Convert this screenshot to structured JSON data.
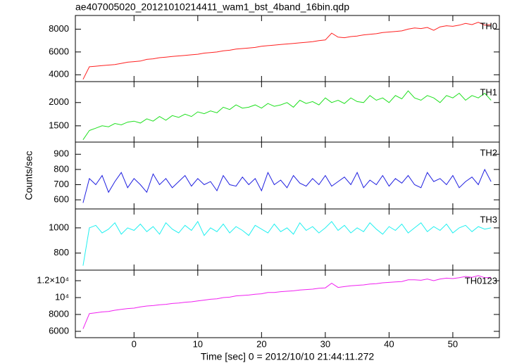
{
  "chart_data": [
    {
      "type": "line",
      "title": "ae407005020_20121010214411_wam1_bst_4band_16bin.qdp",
      "x": [
        -8,
        -7,
        -6,
        -5,
        -4,
        -3,
        -2,
        -1,
        0,
        1,
        2,
        3,
        4,
        5,
        6,
        7,
        8,
        9,
        10,
        11,
        12,
        13,
        14,
        15,
        16,
        17,
        18,
        19,
        20,
        21,
        22,
        23,
        24,
        25,
        26,
        27,
        28,
        29,
        30,
        31,
        32,
        33,
        34,
        35,
        36,
        37,
        38,
        39,
        40,
        41,
        42,
        43,
        44,
        45,
        46,
        47,
        48,
        49,
        50,
        51,
        52,
        53,
        54,
        55,
        56
      ],
      "xlim": [
        -9.2,
        57.3
      ],
      "xticks": [
        0,
        10,
        20,
        30,
        40,
        50
      ],
      "series": [
        {
          "name": "TH0",
          "color": "#ff2020",
          "values": [
            3600,
            4700,
            4750,
            4800,
            4850,
            4900,
            5000,
            5100,
            5150,
            5200,
            5350,
            5400,
            5500,
            5550,
            5600,
            5650,
            5700,
            5750,
            5800,
            5900,
            5950,
            6000,
            6100,
            6150,
            6250,
            6300,
            6350,
            6400,
            6500,
            6550,
            6600,
            6650,
            6700,
            6750,
            6800,
            6850,
            6900,
            7000,
            7050,
            7650,
            7300,
            7250,
            7350,
            7400,
            7500,
            7550,
            7600,
            7700,
            7750,
            7800,
            7850,
            8000,
            8100,
            8050,
            8150,
            7900,
            8200,
            8300,
            8250,
            8350,
            8500,
            8400,
            8600,
            8350,
            8400
          ]
        }
      ],
      "ylim": [
        3400,
        9200
      ],
      "yticks": [
        4000,
        6000,
        8000
      ]
    },
    {
      "type": "line",
      "x": [
        -8,
        -7,
        -6,
        -5,
        -4,
        -3,
        -2,
        -1,
        0,
        1,
        2,
        3,
        4,
        5,
        6,
        7,
        8,
        9,
        10,
        11,
        12,
        13,
        14,
        15,
        16,
        17,
        18,
        19,
        20,
        21,
        22,
        23,
        24,
        25,
        26,
        27,
        28,
        29,
        30,
        31,
        32,
        33,
        34,
        35,
        36,
        37,
        38,
        39,
        40,
        41,
        42,
        43,
        44,
        45,
        46,
        47,
        48,
        49,
        50,
        51,
        52,
        53,
        54,
        55,
        56
      ],
      "xlim": [
        -9.2,
        57.3
      ],
      "xticks": [
        0,
        10,
        20,
        30,
        40,
        50
      ],
      "series": [
        {
          "name": "TH1",
          "color": "#20e020",
          "values": [
            1200,
            1400,
            1450,
            1500,
            1480,
            1550,
            1520,
            1580,
            1600,
            1560,
            1650,
            1600,
            1700,
            1620,
            1720,
            1680,
            1750,
            1700,
            1800,
            1760,
            1820,
            1780,
            1900,
            1850,
            1950,
            1880,
            1900,
            1950,
            1880,
            1980,
            1920,
            1950,
            2000,
            1900,
            2050,
            1980,
            2020,
            1950,
            2100,
            2000,
            2050,
            1980,
            2100,
            2020,
            2000,
            2150,
            2050,
            2100,
            2000,
            2150,
            2080,
            2250,
            2100,
            2050,
            2150,
            2100,
            2000,
            2150,
            2100,
            2200,
            2050,
            2150,
            2100,
            2200,
            2050
          ]
        }
      ],
      "ylim": [
        1150,
        2450
      ],
      "yticks": [
        1500,
        2000
      ]
    },
    {
      "type": "line",
      "ylabel": "Counts/sec",
      "x": [
        -8,
        -7,
        -6,
        -5,
        -4,
        -3,
        -2,
        -1,
        0,
        1,
        2,
        3,
        4,
        5,
        6,
        7,
        8,
        9,
        10,
        11,
        12,
        13,
        14,
        15,
        16,
        17,
        18,
        19,
        20,
        21,
        22,
        23,
        24,
        25,
        26,
        27,
        28,
        29,
        30,
        31,
        32,
        33,
        34,
        35,
        36,
        37,
        38,
        39,
        40,
        41,
        42,
        43,
        44,
        45,
        46,
        47,
        48,
        49,
        50,
        51,
        52,
        53,
        54,
        55,
        56
      ],
      "xlim": [
        -9.2,
        57.3
      ],
      "xticks": [
        0,
        10,
        20,
        30,
        40,
        50
      ],
      "series": [
        {
          "name": "TH2",
          "color": "#2020e0",
          "values": [
            580,
            740,
            700,
            760,
            650,
            720,
            780,
            680,
            740,
            700,
            650,
            770,
            700,
            740,
            680,
            720,
            760,
            690,
            740,
            700,
            720,
            660,
            760,
            700,
            690,
            750,
            700,
            740,
            660,
            780,
            700,
            730,
            680,
            760,
            710,
            690,
            740,
            700,
            760,
            690,
            720,
            750,
            700,
            780,
            680,
            730,
            700,
            760,
            690,
            740,
            710,
            760,
            700,
            680,
            780,
            720,
            740,
            700,
            760,
            680,
            720,
            750,
            700,
            800,
            720
          ]
        }
      ],
      "ylim": [
        540,
        980
      ],
      "yticks": [
        600,
        700,
        800,
        900
      ]
    },
    {
      "type": "line",
      "x": [
        -8,
        -7,
        -6,
        -5,
        -4,
        -3,
        -2,
        -1,
        0,
        1,
        2,
        3,
        4,
        5,
        6,
        7,
        8,
        9,
        10,
        11,
        12,
        13,
        14,
        15,
        16,
        17,
        18,
        19,
        20,
        21,
        22,
        23,
        24,
        25,
        26,
        27,
        28,
        29,
        30,
        31,
        32,
        33,
        34,
        35,
        36,
        37,
        38,
        39,
        40,
        41,
        42,
        43,
        44,
        45,
        46,
        47,
        48,
        49,
        50,
        51,
        52,
        53,
        54,
        55,
        56
      ],
      "xlim": [
        -9.2,
        57.3
      ],
      "xticks": [
        0,
        10,
        20,
        30,
        40,
        50
      ],
      "series": [
        {
          "name": "TH3",
          "color": "#20f0f0",
          "values": [
            700,
            1000,
            1020,
            960,
            990,
            1040,
            950,
            1000,
            980,
            1030,
            970,
            1010,
            950,
            1040,
            990,
            960,
            1020,
            980,
            1050,
            940,
            1000,
            970,
            1030,
            960,
            1010,
            980,
            940,
            1020,
            990,
            960,
            1030,
            970,
            1000,
            950,
            1040,
            980,
            1010,
            960,
            1000,
            1050,
            980,
            1020,
            960,
            1000,
            970,
            1040,
            990,
            950,
            1010,
            980,
            1030,
            960,
            1000,
            1040,
            970,
            1010,
            980,
            1030,
            960,
            1000,
            1020,
            970,
            1010,
            990,
            1000
          ]
        }
      ],
      "ylim": [
        665,
        1150
      ],
      "yticks": [
        800,
        1000
      ]
    },
    {
      "type": "line",
      "xlabel": "Time [sec] 0 = 2012/10/10 21:44:11.272",
      "x": [
        -8,
        -7,
        -6,
        -5,
        -4,
        -3,
        -2,
        -1,
        0,
        1,
        2,
        3,
        4,
        5,
        6,
        7,
        8,
        9,
        10,
        11,
        12,
        13,
        14,
        15,
        16,
        17,
        18,
        19,
        20,
        21,
        22,
        23,
        24,
        25,
        26,
        27,
        28,
        29,
        30,
        31,
        32,
        33,
        34,
        35,
        36,
        37,
        38,
        39,
        40,
        41,
        42,
        43,
        44,
        45,
        46,
        47,
        48,
        49,
        50,
        51,
        52,
        53,
        54,
        55,
        56
      ],
      "xlim": [
        -9.2,
        57.3
      ],
      "xticks": [
        0,
        10,
        20,
        30,
        40,
        50
      ],
      "series": [
        {
          "name": "TH0123",
          "color": "#f020f0",
          "values": [
            6300,
            8100,
            8200,
            8300,
            8350,
            8500,
            8600,
            8700,
            8750,
            8900,
            9000,
            9050,
            9150,
            9200,
            9300,
            9350,
            9450,
            9500,
            9600,
            9700,
            9800,
            9850,
            10000,
            10050,
            10200,
            10250,
            10300,
            10400,
            10450,
            10600,
            10600,
            10700,
            10750,
            10800,
            10900,
            10950,
            11000,
            11100,
            11150,
            11700,
            11200,
            11300,
            11400,
            11450,
            11500,
            11600,
            11650,
            11750,
            11800,
            11850,
            11900,
            12100,
            12100,
            12050,
            12200,
            12000,
            12200,
            12300,
            12250,
            12350,
            12500,
            12400,
            12600,
            12350,
            12400
          ]
        }
      ],
      "ylim": [
        5250,
        13250
      ],
      "yticks": [
        6000,
        8000,
        {
          "value": 10000,
          "label": "10⁴"
        },
        {
          "value": 12000,
          "label": "1.2×10⁴"
        }
      ]
    }
  ]
}
